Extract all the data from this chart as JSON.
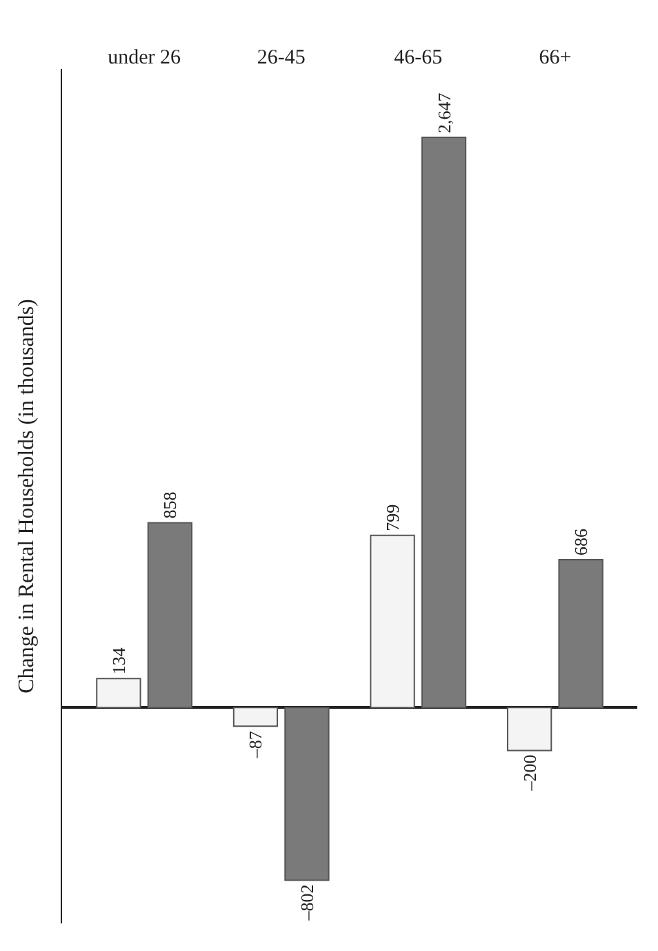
{
  "chart_data": {
    "type": "bar",
    "ylabel": "Change in Rental Households (in thousands)",
    "categories": [
      "under 26",
      "26-45",
      "46-65",
      "66+"
    ],
    "series": [
      {
        "color": "#f4f4f4",
        "values": [
          134,
          -87,
          799,
          -200
        ],
        "value_labels": [
          "134",
          "–87",
          "799",
          "–200"
        ]
      },
      {
        "color": "#7a7a7a",
        "values": [
          858,
          -802,
          2647,
          686
        ],
        "value_labels": [
          "858",
          "–802",
          "2,647",
          "686"
        ]
      }
    ],
    "tick_labels": "x"
  }
}
